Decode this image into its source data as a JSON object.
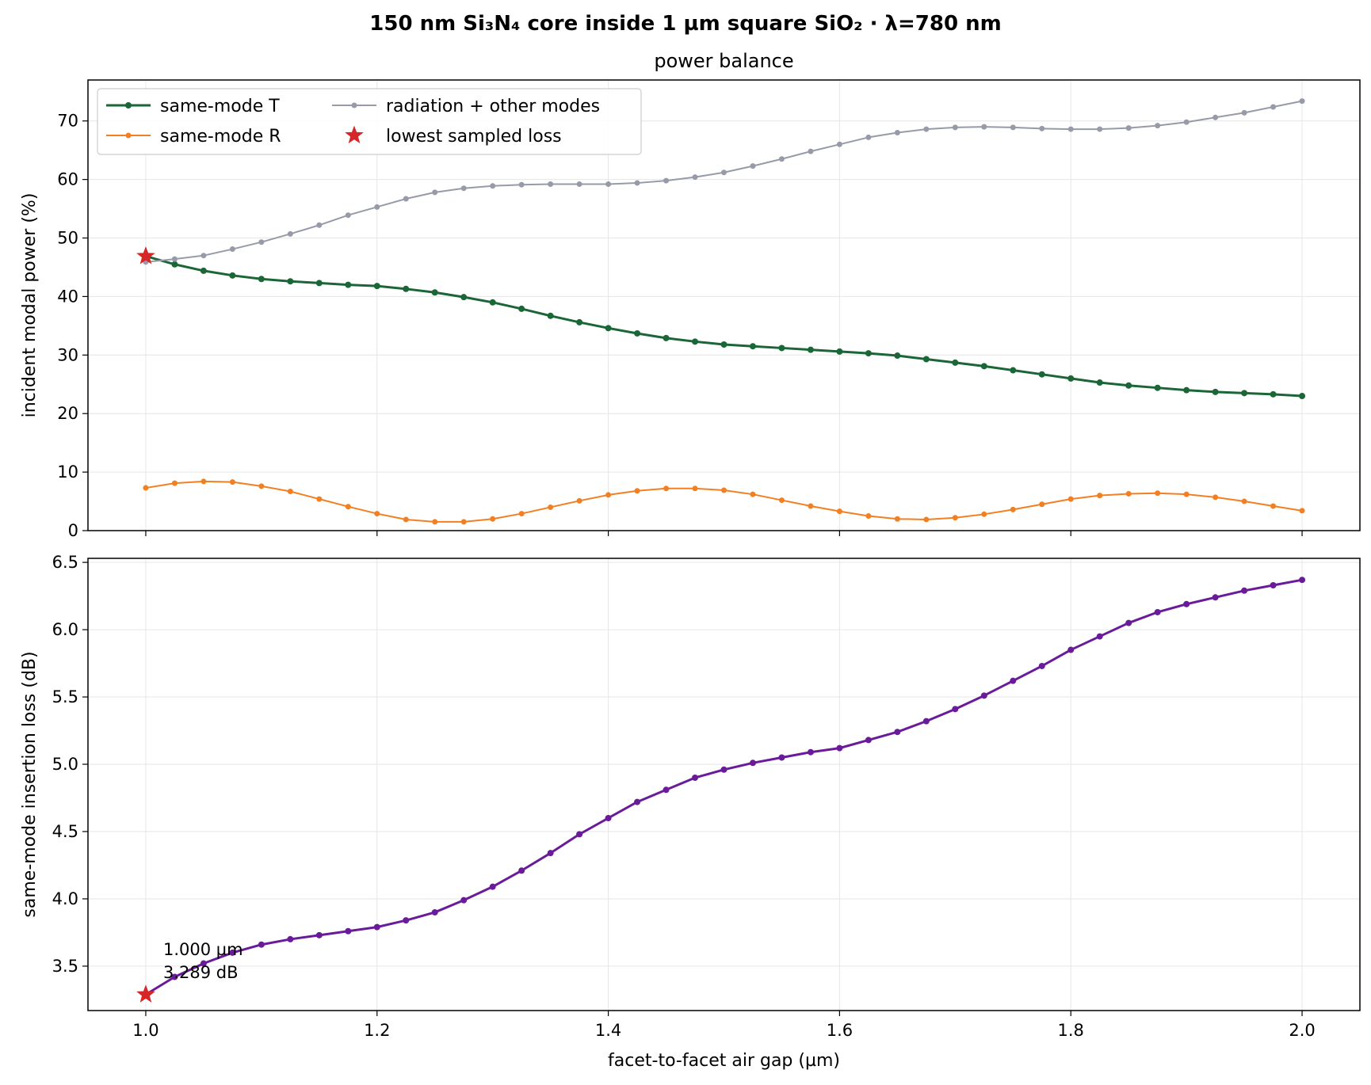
{
  "figure": {
    "suptitle": "150 nm Si₃N₄ core inside 1 µm square SiO₂ · λ=780 nm"
  },
  "chart_data": [
    {
      "type": "line",
      "title": "power balance",
      "xlabel": "",
      "ylabel": "incident modal power (%)",
      "xlim": [
        0.95,
        2.05
      ],
      "ylim": [
        0,
        77
      ],
      "xticks": [
        1.0,
        1.2,
        1.4,
        1.6,
        1.8,
        2.0
      ],
      "xticklabels": [
        "",
        "",
        "",
        "",
        "",
        ""
      ],
      "yticks": [
        0,
        10,
        20,
        30,
        40,
        50,
        60,
        70
      ],
      "yticklabels": [
        "0",
        "10",
        "20",
        "30",
        "40",
        "50",
        "60",
        "70"
      ],
      "grid": true,
      "legend": {
        "placement": "upper-left",
        "entries": [
          "same-mode T",
          "same-mode R",
          "radiation + other modes",
          "lowest sampled loss"
        ]
      },
      "x": [
        1.0,
        1.025,
        1.05,
        1.075,
        1.1,
        1.125,
        1.15,
        1.175,
        1.2,
        1.225,
        1.25,
        1.275,
        1.3,
        1.325,
        1.35,
        1.375,
        1.4,
        1.425,
        1.45,
        1.475,
        1.5,
        1.525,
        1.55,
        1.575,
        1.6,
        1.625,
        1.65,
        1.675,
        1.7,
        1.725,
        1.75,
        1.775,
        1.8,
        1.825,
        1.85,
        1.875,
        1.9,
        1.925,
        1.95,
        1.975,
        2.0
      ],
      "series": [
        {
          "name": "same-mode T",
          "color": "#1a6637",
          "values": [
            46.9,
            45.5,
            44.4,
            43.6,
            43.0,
            42.6,
            42.3,
            42.0,
            41.8,
            41.3,
            40.7,
            39.9,
            39.0,
            37.9,
            36.7,
            35.6,
            34.6,
            33.7,
            32.9,
            32.3,
            31.8,
            31.5,
            31.2,
            30.9,
            30.6,
            30.3,
            29.9,
            29.3,
            28.7,
            28.1,
            27.4,
            26.7,
            26.0,
            25.3,
            24.8,
            24.4,
            24.0,
            23.7,
            23.5,
            23.3,
            23.0
          ]
        },
        {
          "name": "same-mode R",
          "color": "#f28022",
          "values": [
            7.3,
            8.1,
            8.4,
            8.3,
            7.6,
            6.7,
            5.4,
            4.1,
            2.9,
            1.9,
            1.5,
            1.5,
            2.0,
            2.9,
            4.0,
            5.1,
            6.1,
            6.8,
            7.2,
            7.2,
            6.9,
            6.2,
            5.2,
            4.2,
            3.3,
            2.5,
            2.0,
            1.9,
            2.2,
            2.8,
            3.6,
            4.5,
            5.4,
            6.0,
            6.3,
            6.4,
            6.2,
            5.7,
            5.0,
            4.2,
            3.4
          ]
        },
        {
          "name": "radiation + other modes",
          "color": "#979ba9",
          "values": [
            45.9,
            46.4,
            47.0,
            48.1,
            49.3,
            50.7,
            52.2,
            53.9,
            55.3,
            56.7,
            57.8,
            58.5,
            58.9,
            59.1,
            59.2,
            59.2,
            59.2,
            59.4,
            59.8,
            60.4,
            61.2,
            62.3,
            63.5,
            64.8,
            66.0,
            67.2,
            68.0,
            68.6,
            68.9,
            69.0,
            68.9,
            68.7,
            68.6,
            68.6,
            68.8,
            69.2,
            69.8,
            70.6,
            71.4,
            72.4,
            73.4
          ]
        }
      ],
      "markers": [
        {
          "name": "lowest sampled loss",
          "x": 1.0,
          "y": 46.9,
          "color": "#d62728",
          "shape": "star"
        }
      ]
    },
    {
      "type": "line",
      "title": "",
      "xlabel": "facet-to-facet air gap (µm)",
      "ylabel": "same-mode insertion loss (dB)",
      "xlim": [
        0.95,
        2.05
      ],
      "ylim": [
        3.17,
        6.53
      ],
      "xticks": [
        1.0,
        1.2,
        1.4,
        1.6,
        1.8,
        2.0
      ],
      "xticklabels": [
        "1.0",
        "1.2",
        "1.4",
        "1.6",
        "1.8",
        "2.0"
      ],
      "yticks": [
        3.5,
        4.0,
        4.5,
        5.0,
        5.5,
        6.0,
        6.5
      ],
      "yticklabels": [
        "3.5",
        "4.0",
        "4.5",
        "5.0",
        "5.5",
        "6.0",
        "6.5"
      ],
      "grid": true,
      "x": [
        1.0,
        1.025,
        1.05,
        1.075,
        1.1,
        1.125,
        1.15,
        1.175,
        1.2,
        1.225,
        1.25,
        1.275,
        1.3,
        1.325,
        1.35,
        1.375,
        1.4,
        1.425,
        1.45,
        1.475,
        1.5,
        1.525,
        1.55,
        1.575,
        1.6,
        1.625,
        1.65,
        1.675,
        1.7,
        1.725,
        1.75,
        1.775,
        1.8,
        1.825,
        1.85,
        1.875,
        1.9,
        1.925,
        1.95,
        1.975,
        2.0
      ],
      "series": [
        {
          "name": "",
          "color": "#6a1b9a",
          "values": [
            3.289,
            3.42,
            3.52,
            3.6,
            3.66,
            3.7,
            3.73,
            3.76,
            3.79,
            3.84,
            3.9,
            3.99,
            4.09,
            4.21,
            4.34,
            4.48,
            4.6,
            4.72,
            4.81,
            4.9,
            4.96,
            5.01,
            5.05,
            5.09,
            5.12,
            5.18,
            5.24,
            5.32,
            5.41,
            5.51,
            5.62,
            5.73,
            5.85,
            5.95,
            6.05,
            6.13,
            6.19,
            6.24,
            6.29,
            6.33,
            6.37
          ]
        }
      ],
      "markers": [
        {
          "name": "",
          "x": 1.0,
          "y": 3.289,
          "color": "#d62728",
          "shape": "star"
        }
      ],
      "annotations": [
        {
          "x": 1.0,
          "y": 3.289,
          "lines": [
            "1.000 µm",
            "3.289 dB"
          ]
        }
      ]
    }
  ]
}
